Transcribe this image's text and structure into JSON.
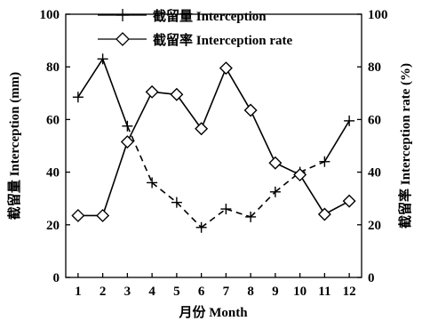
{
  "chart_data": {
    "type": "line",
    "categories": [
      "1",
      "2",
      "3",
      "4",
      "5",
      "6",
      "7",
      "8",
      "9",
      "10",
      "11",
      "12"
    ],
    "xlabel": "月份 Month",
    "ylabel_left": "截留量 Interception (mm)",
    "ylabel_right": "截留率 Interception rate (%)",
    "ylim_left": [
      0,
      100
    ],
    "ylim_right": [
      0,
      100
    ],
    "yticks_left": [
      "0",
      "20",
      "40",
      "60",
      "80",
      "100"
    ],
    "yticks_right": [
      "0",
      "20",
      "40",
      "60",
      "80",
      "100"
    ],
    "grid": false,
    "legend_position": "top-center",
    "series": [
      {
        "name": "截留量 Interception",
        "axis": "left",
        "marker": "plus",
        "values": [
          68.5,
          83,
          57.5,
          36,
          28.5,
          19,
          26,
          23,
          32.5,
          40,
          44,
          59.5
        ],
        "segment_styles": [
          "solid",
          "solid",
          "dashed",
          "dashed",
          "dashed",
          "dashed",
          "dashed",
          "dashed",
          "dashed",
          "dashed",
          "solid"
        ]
      },
      {
        "name": "截留率 Interception rate",
        "axis": "right",
        "marker": "diamond",
        "values": [
          23.5,
          23.5,
          51.5,
          70.5,
          69.5,
          56.5,
          79.5,
          63.5,
          43.5,
          39,
          24,
          29
        ],
        "segment_styles": [
          "solid",
          "solid",
          "solid",
          "solid",
          "solid",
          "solid",
          "solid",
          "solid",
          "solid",
          "solid",
          "solid"
        ]
      }
    ],
    "colors": {
      "line": "#000000",
      "marker_fill": "#ffffff"
    }
  }
}
